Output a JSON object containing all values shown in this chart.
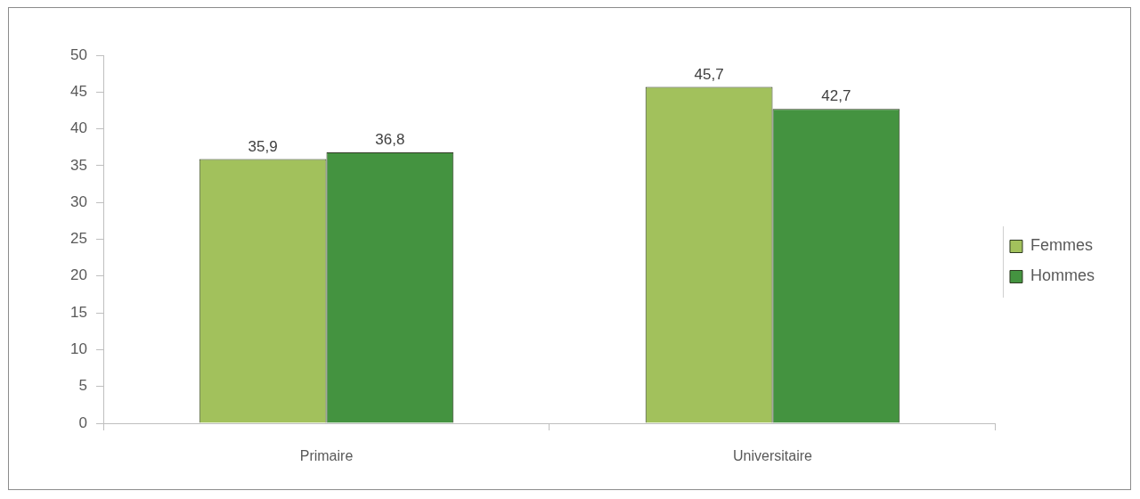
{
  "chart_data": {
    "type": "bar",
    "categories": [
      "Primaire",
      "Universitaire"
    ],
    "series": [
      {
        "name": "Femmes",
        "color": "#a2c15c",
        "values": [
          35.9,
          45.7
        ],
        "value_labels": [
          "35,9",
          "45,7"
        ]
      },
      {
        "name": "Hommes",
        "color": "#449340",
        "values": [
          36.8,
          42.7
        ],
        "value_labels": [
          "36,8",
          "42,7"
        ]
      }
    ],
    "ylim": [
      0,
      50
    ],
    "yticks": [
      0,
      5,
      10,
      15,
      20,
      25,
      30,
      35,
      40,
      45,
      50
    ],
    "legend": "right"
  }
}
